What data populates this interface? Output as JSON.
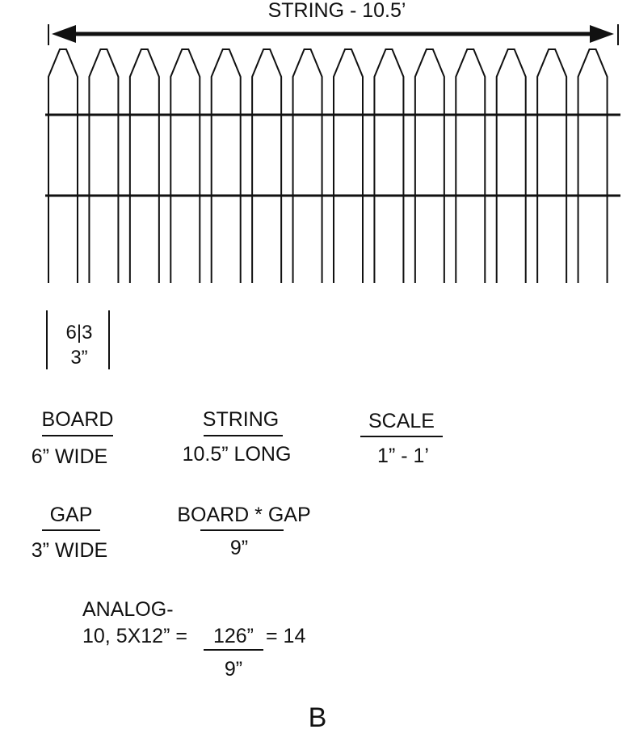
{
  "title": "STRING - 10.5’",
  "board_sample": {
    "top": "6|3",
    "bottom": "3”"
  },
  "board": {
    "label": "BOARD",
    "value": "6” WIDE"
  },
  "string": {
    "label": "STRING",
    "value": "10.5” LONG"
  },
  "scale": {
    "label": "SCALE",
    "value": "1” - 1’"
  },
  "gap": {
    "label": "GAP",
    "value": "3” WIDE"
  },
  "board_gap": {
    "label": "BOARD * GAP",
    "value": "9”"
  },
  "analog": {
    "line1": "ANALOG-",
    "prefix": "10, 5X12” =",
    "numerator": "126”",
    "suffix": "= 14",
    "denominator": "9”"
  },
  "figure_label": "B",
  "fence": {
    "picket_count": 14,
    "rail_count": 2
  }
}
